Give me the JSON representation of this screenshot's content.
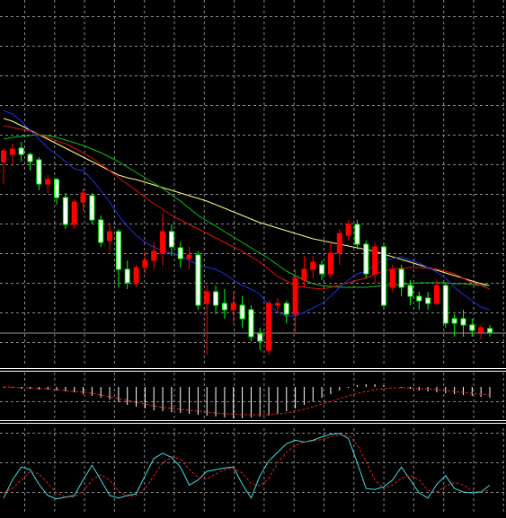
{
  "chart_data": [
    {
      "type": "candlestick",
      "ylim": [
        0,
        408
      ],
      "grid": true,
      "up_color": "#ff0000",
      "down_color": "#ffffff",
      "down_edge_color": "#00ff00",
      "open": [
        228,
        236,
        243,
        236,
        230,
        203,
        208,
        188,
        158,
        183,
        190,
        163,
        140,
        150,
        108,
        93,
        110,
        118,
        126,
        150,
        132,
        120,
        124,
        70,
        83,
        70,
        63,
        68,
        63,
        36,
        18,
        68,
        70,
        58,
        96,
        108,
        113,
        103,
        126,
        146,
        158,
        136,
        103,
        133,
        88,
        108,
        90,
        78,
        76,
        70,
        90,
        53,
        53,
        46,
        38,
        42
      ],
      "high": [
        243,
        248,
        250,
        238,
        233,
        213,
        210,
        193,
        186,
        198,
        193,
        168,
        158,
        153,
        118,
        113,
        128,
        138,
        170,
        158,
        138,
        133,
        128,
        90,
        90,
        86,
        83,
        78,
        68,
        43,
        73,
        76,
        73,
        108,
        123,
        123,
        118,
        138,
        153,
        163,
        163,
        140,
        138,
        138,
        113,
        113,
        96,
        83,
        83,
        96,
        93,
        58,
        63,
        53,
        46,
        46
      ],
      "low": [
        203,
        223,
        228,
        218,
        196,
        193,
        180,
        153,
        153,
        173,
        158,
        133,
        128,
        88,
        86,
        88,
        103,
        108,
        113,
        123,
        110,
        108,
        63,
        13,
        58,
        53,
        48,
        43,
        28,
        18,
        13,
        60,
        48,
        36,
        88,
        98,
        96,
        98,
        113,
        140,
        130,
        98,
        93,
        63,
        83,
        78,
        68,
        63,
        63,
        68,
        43,
        33,
        33,
        33,
        30,
        33
      ],
      "close": [
        240,
        242,
        236,
        228,
        203,
        208,
        188,
        158,
        183,
        193,
        163,
        138,
        150,
        108,
        93,
        110,
        118,
        128,
        150,
        133,
        120,
        124,
        68,
        83,
        68,
        63,
        70,
        53,
        33,
        28,
        70,
        70,
        58,
        98,
        108,
        116,
        103,
        126,
        148,
        158,
        136,
        103,
        133,
        68,
        108,
        88,
        78,
        73,
        70,
        90,
        48,
        48,
        46,
        40,
        43,
        38
      ],
      "price_line": 37,
      "price_line_color": "#9a9a9a",
      "series": [
        {
          "color": "#ffff80",
          "values": [
            276,
            273,
            268,
            263,
            258,
            253,
            248,
            243,
            238,
            233,
            228,
            223,
            218,
            213,
            210,
            208,
            205,
            202,
            199,
            196,
            193,
            190,
            187,
            184,
            180,
            176,
            172,
            168,
            164,
            160,
            157,
            154,
            151,
            148,
            145,
            142,
            140,
            138,
            136,
            134,
            132,
            130,
            128,
            125,
            122,
            119,
            116,
            113,
            110,
            107,
            104,
            101,
            98,
            95,
            92,
            90
          ]
        },
        {
          "color": "#10c010",
          "values": [
            253,
            255,
            256,
            257,
            258,
            257,
            255,
            252,
            249,
            246,
            242,
            238,
            233,
            228,
            222,
            216,
            210,
            204,
            198,
            191,
            184,
            176,
            168,
            162,
            156,
            150,
            144,
            138,
            132,
            126,
            120,
            113,
            106,
            101,
            96,
            92,
            90,
            89,
            88,
            88,
            88,
            88,
            89,
            90,
            90,
            91,
            92,
            93,
            93,
            93,
            93,
            92,
            92,
            91,
            90,
            90
          ]
        },
        {
          "color": "#e01010",
          "values": [
            268,
            266,
            264,
            262,
            258,
            255,
            251,
            248,
            243,
            238,
            232,
            225,
            218,
            210,
            203,
            196,
            188,
            181,
            175,
            168,
            163,
            158,
            153,
            148,
            143,
            138,
            133,
            128,
            122,
            116,
            108,
            100,
            95,
            90,
            88,
            87,
            86,
            88,
            90,
            93,
            96,
            98,
            103,
            106,
            108,
            109,
            110,
            110,
            109,
            108,
            106,
            103,
            98,
            93,
            90,
            86
          ]
        },
        {
          "color": "#2030e0",
          "values": [
            285,
            281,
            273,
            263,
            253,
            243,
            236,
            228,
            220,
            218,
            208,
            196,
            183,
            168,
            156,
            146,
            138,
            133,
            128,
            126,
            123,
            118,
            113,
            110,
            108,
            103,
            96,
            90,
            86,
            80,
            68,
            60,
            56,
            56,
            60,
            65,
            70,
            78,
            88,
            96,
            103,
            106,
            113,
            118,
            120,
            122,
            118,
            115,
            110,
            105,
            98,
            88,
            80,
            73,
            66,
            63
          ]
        }
      ]
    },
    {
      "type": "bar",
      "ylim": [
        -36,
        16
      ],
      "grid": true,
      "color": "#ffffff",
      "values": [
        -1,
        -1,
        -2,
        -2,
        -3,
        -3,
        -4,
        -5,
        -6,
        -8,
        -10,
        -12,
        -14,
        -17,
        -20,
        -22,
        -24,
        -26,
        -27,
        -28,
        -29,
        -30,
        -31,
        -32,
        -33,
        -34,
        -35,
        -35,
        -34,
        -33,
        -32,
        -30,
        -27,
        -24,
        -20,
        -16,
        -12,
        -8,
        -4,
        -1,
        2,
        3,
        3,
        2,
        0,
        -1,
        -2,
        -4,
        -5,
        -6,
        -7,
        -8,
        -9,
        -10,
        -11,
        -12
      ],
      "series": [
        {
          "color": "#e02020",
          "dashed": true,
          "values": [
            0,
            0,
            -1,
            -1,
            -2,
            -2,
            -3,
            -4,
            -5,
            -6,
            -7,
            -9,
            -11,
            -13,
            -15,
            -17,
            -19,
            -21,
            -23,
            -24,
            -25,
            -26,
            -27,
            -28,
            -29,
            -30,
            -30,
            -31,
            -31,
            -31,
            -31,
            -30,
            -29,
            -27,
            -25,
            -22,
            -19,
            -16,
            -13,
            -10,
            -7,
            -5,
            -3,
            -2,
            -1,
            -1,
            -1,
            -2,
            -2,
            -3,
            -4,
            -5,
            -6,
            -7,
            -8,
            -9
          ]
        }
      ]
    },
    {
      "type": "line",
      "ylim": [
        0,
        100
      ],
      "grid": true,
      "series": [
        {
          "color": "#40e0e0",
          "values": [
            19,
            40,
            55,
            52,
            35,
            22,
            18,
            20,
            22,
            40,
            57,
            40,
            22,
            19,
            22,
            24,
            45,
            65,
            71,
            66,
            55,
            34,
            40,
            50,
            52,
            54,
            55,
            35,
            19,
            45,
            62,
            72,
            82,
            86,
            84,
            86,
            90,
            93,
            94,
            88,
            60,
            30,
            29,
            32,
            40,
            55,
            40,
            25,
            19,
            35,
            45,
            30,
            26,
            25,
            26,
            34
          ]
        },
        {
          "color": "#e02020",
          "dashed": true,
          "values": [
            25,
            30,
            40,
            50,
            47,
            36,
            25,
            20,
            20,
            27,
            40,
            46,
            40,
            27,
            21,
            22,
            30,
            45,
            60,
            67,
            64,
            52,
            43,
            41,
            47,
            52,
            54,
            48,
            36,
            33,
            42,
            60,
            72,
            80,
            84,
            85,
            87,
            90,
            92,
            92,
            81,
            61,
            40,
            30,
            34,
            42,
            45,
            40,
            28,
            26,
            33,
            37,
            34,
            27,
            26,
            28
          ]
        }
      ]
    }
  ]
}
